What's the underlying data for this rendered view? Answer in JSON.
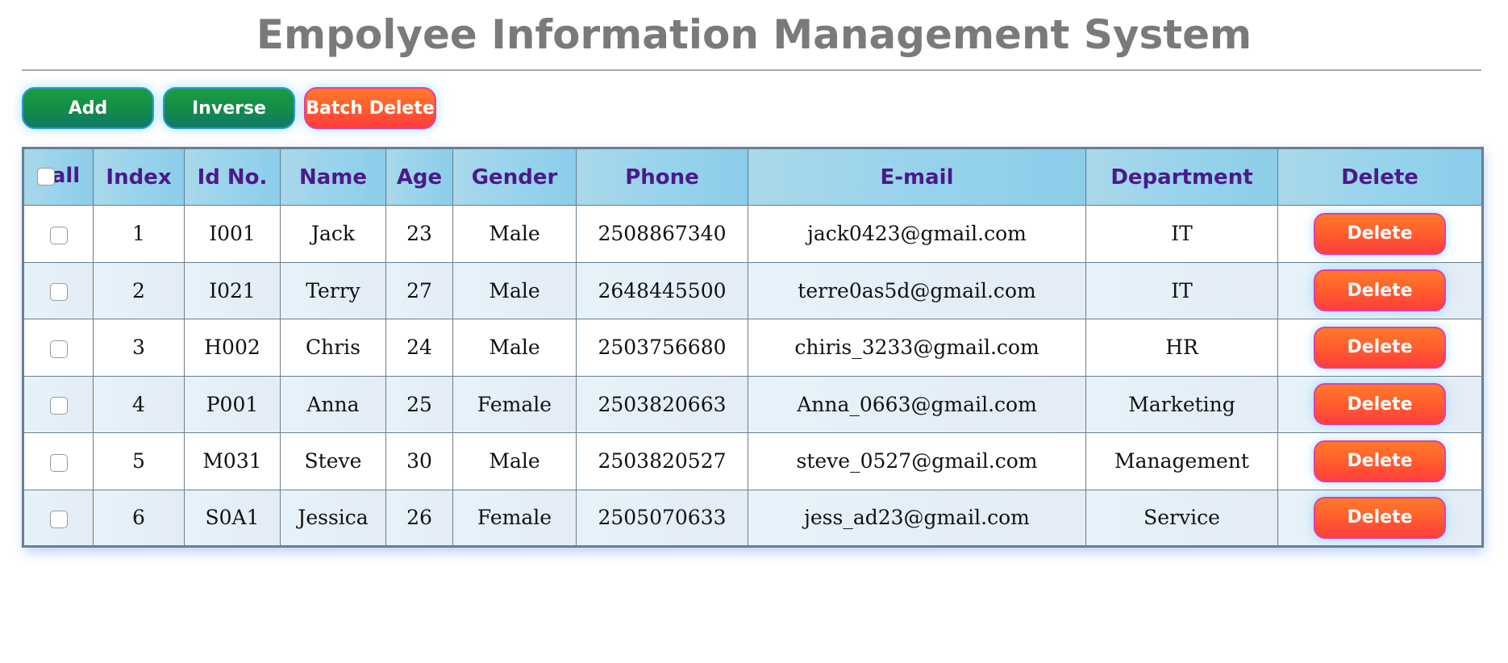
{
  "title": "Empolyee Information Management System",
  "toolbar": {
    "add_label": "Add",
    "inverse_label": "Inverse",
    "batch_delete_label": "Batch Delete"
  },
  "table": {
    "headers": {
      "all": "all",
      "index": "Index",
      "id": "Id No.",
      "name": "Name",
      "age": "Age",
      "gender": "Gender",
      "phone": "Phone",
      "email": "E-mail",
      "department": "Department",
      "delete": "Delete"
    },
    "rows": [
      {
        "index": "1",
        "id": "I001",
        "name": "Jack",
        "age": "23",
        "gender": "Male",
        "phone": "2508867340",
        "email": "jack0423@gmail.com",
        "department": "IT",
        "delete_label": "Delete"
      },
      {
        "index": "2",
        "id": "I021",
        "name": "Terry",
        "age": "27",
        "gender": "Male",
        "phone": "2648445500",
        "email": "terre0as5d@gmail.com",
        "department": "IT",
        "delete_label": "Delete"
      },
      {
        "index": "3",
        "id": "H002",
        "name": "Chris",
        "age": "24",
        "gender": "Male",
        "phone": "2503756680",
        "email": "chiris_3233@gmail.com",
        "department": "HR",
        "delete_label": "Delete"
      },
      {
        "index": "4",
        "id": "P001",
        "name": "Anna",
        "age": "25",
        "gender": "Female",
        "phone": "2503820663",
        "email": "Anna_0663@gmail.com",
        "department": "Marketing",
        "delete_label": "Delete"
      },
      {
        "index": "5",
        "id": "M031",
        "name": "Steve",
        "age": "30",
        "gender": "Male",
        "phone": "2503820527",
        "email": "steve_0527@gmail.com",
        "department": "Management",
        "delete_label": "Delete"
      },
      {
        "index": "6",
        "id": "S0A1",
        "name": "Jessica",
        "age": "26",
        "gender": "Female",
        "phone": "2505070633",
        "email": "jess_ad23@gmail.com",
        "department": "Service",
        "delete_label": "Delete"
      }
    ]
  },
  "colors": {
    "title": "#7a7a7a",
    "header_text": "#4a1a8a",
    "green_button": "#13894a",
    "orange_button": "#ff5a2e"
  }
}
